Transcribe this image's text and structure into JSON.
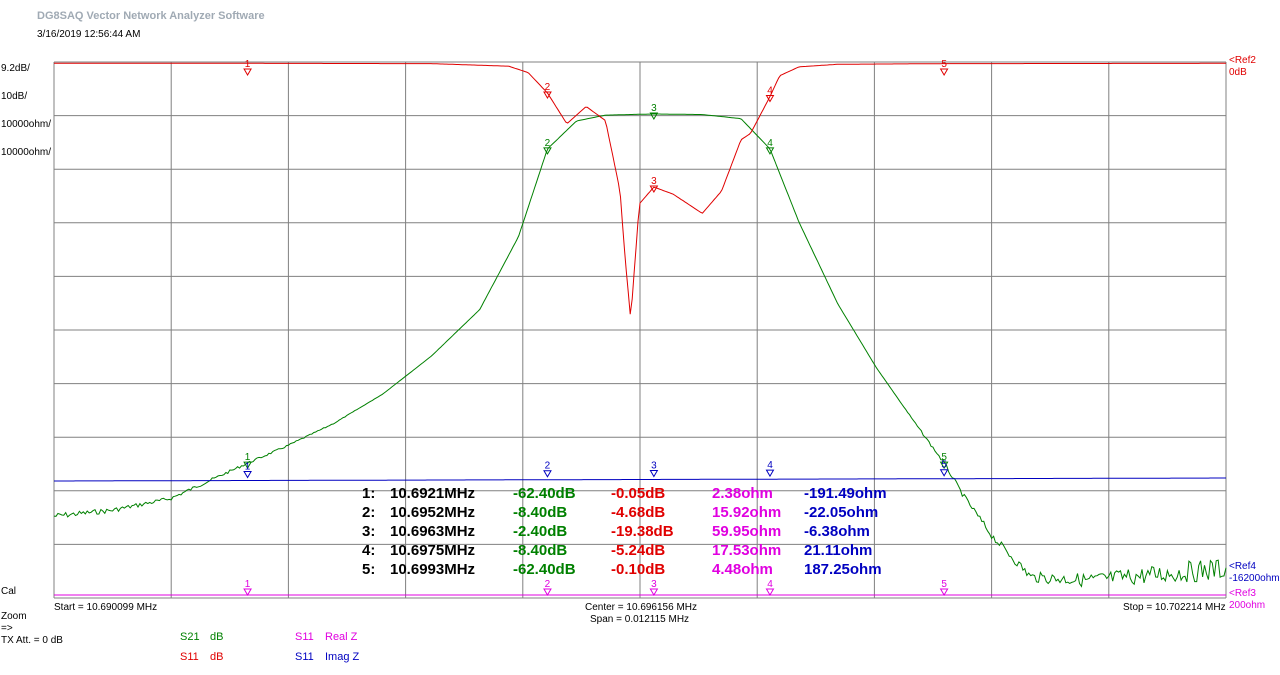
{
  "window": {
    "title": "DG8SAQ Vector Network Analyzer Software",
    "datetime": "3/16/2019    12:56:44 AM"
  },
  "scales": {
    "left": [
      {
        "text": "9.2dB/",
        "color": "#008000"
      },
      {
        "text": "10dB/",
        "color": "#e00000"
      },
      {
        "text": "10000ohm/",
        "color": "#e000e0"
      },
      {
        "text": "10000ohm/",
        "color": "#0000c0"
      }
    ],
    "right": {
      "ref12": "<Ref2",
      "ref1_sub": "0dB",
      "ref4": "<Ref4",
      "ref4_val": "-16200ohm",
      "ref3": "<Ref3",
      "ref3_val": "200ohm"
    }
  },
  "axis": {
    "start": "Start = 10.690099 MHz",
    "center": "Center = 10.696156 MHz",
    "span": "Span = 0.012115 MHz",
    "stop": "Stop = 10.702214 MHz"
  },
  "side_labels": {
    "cal": "Cal",
    "zoom": "Zoom",
    "arrow": "=>",
    "tx_att": "TX Att.  = 0 dB"
  },
  "legend": [
    {
      "param": "S21",
      "unit": "dB",
      "color": "#008000"
    },
    {
      "param": "S11",
      "unit": "dB",
      "color": "#e00000"
    },
    {
      "param": "S11",
      "unit": "Real Z",
      "color": "#e000e0"
    },
    {
      "param": "S11",
      "unit": "Imag Z",
      "color": "#0000c0"
    }
  ],
  "markers_table": [
    {
      "idx": "1:",
      "freq": "10.6921MHz",
      "s21": "-62.40dB",
      "s11": "-0.05dB",
      "re": "2.38ohm",
      "im": "-191.49ohm"
    },
    {
      "idx": "2:",
      "freq": "10.6952MHz",
      "s21": "-8.40dB",
      "s11": "-4.68dB",
      "re": "15.92ohm",
      "im": "-22.05ohm"
    },
    {
      "idx": "3:",
      "freq": "10.6963MHz",
      "s21": "-2.40dB",
      "s11": "-19.38dB",
      "re": "59.95ohm",
      "im": "-6.38ohm"
    },
    {
      "idx": "4:",
      "freq": "10.6975MHz",
      "s21": "-8.40dB",
      "s11": "-5.24dB",
      "re": "17.53ohm",
      "im": "21.11ohm"
    },
    {
      "idx": "5:",
      "freq": "10.6993MHz",
      "s21": "-62.40dB",
      "s11": "-0.10dB",
      "re": "4.48ohm",
      "im": "187.25ohm"
    }
  ],
  "chart_data": {
    "type": "line",
    "x_unit": "MHz",
    "xlim": [
      10.690099,
      10.702214
    ],
    "grid": true,
    "divisions": {
      "x": 10,
      "y": 10
    },
    "series": [
      {
        "name": "S21 dB",
        "color": "#008000",
        "x": [
          10.690099,
          10.6907,
          10.6913,
          10.6921,
          10.6925,
          10.693,
          10.6935,
          10.694,
          10.6945,
          10.6949,
          10.6952,
          10.6955,
          10.6958,
          10.6963,
          10.6968,
          10.6972,
          10.6975,
          10.6978,
          10.6982,
          10.6986,
          10.699,
          10.6993,
          10.6995,
          10.6998,
          10.7002,
          10.7008,
          10.7015,
          10.702214
        ],
        "y": [
          -71.5,
          -70.5,
          -68.5,
          -62.4,
          -59.5,
          -55.5,
          -50.5,
          -44.0,
          -36.0,
          -23.5,
          -8.4,
          -3.6,
          -2.6,
          -2.4,
          -2.5,
          -3.2,
          -8.4,
          -21.0,
          -35.0,
          -46.0,
          -55.5,
          -62.4,
          -68.0,
          -75.0,
          -82.0,
          -82.5,
          -81.5,
          -80.5
        ]
      },
      {
        "name": "S11 dB",
        "color": "#e00000",
        "x": [
          10.690099,
          10.6921,
          10.694,
          10.6948,
          10.695,
          10.6952,
          10.6954,
          10.6956,
          10.6958,
          10.69595,
          10.696,
          10.69606,
          10.69615,
          10.6963,
          10.6965,
          10.6968,
          10.697,
          10.6972,
          10.6973,
          10.6975,
          10.6976,
          10.6978,
          10.6982,
          10.6993,
          10.702214
        ],
        "y": [
          -0.05,
          -0.05,
          -0.1,
          -0.5,
          -1.5,
          -4.68,
          -9.5,
          -6.8,
          -9.0,
          -20.0,
          -30.0,
          -40.0,
          -22.0,
          -19.38,
          -20.5,
          -23.5,
          -20.0,
          -12.0,
          -11.0,
          -5.24,
          -2.0,
          -0.6,
          -0.2,
          -0.1,
          -0.05
        ]
      },
      {
        "name": "S11 Real Z",
        "color": "#e000e0",
        "x": [
          10.690099,
          10.702214
        ],
        "y": [
          2.38,
          4.48
        ]
      },
      {
        "name": "S11 Imag Z",
        "color": "#0000c0",
        "x": [
          10.690099,
          10.702214
        ],
        "y": [
          -191.49,
          187.25
        ]
      }
    ],
    "markers": [
      {
        "label": "1",
        "x": 10.6921
      },
      {
        "label": "2",
        "x": 10.6952
      },
      {
        "label": "3",
        "x": 10.6963
      },
      {
        "label": "4",
        "x": 10.6975
      },
      {
        "label": "5",
        "x": 10.6993
      }
    ]
  }
}
